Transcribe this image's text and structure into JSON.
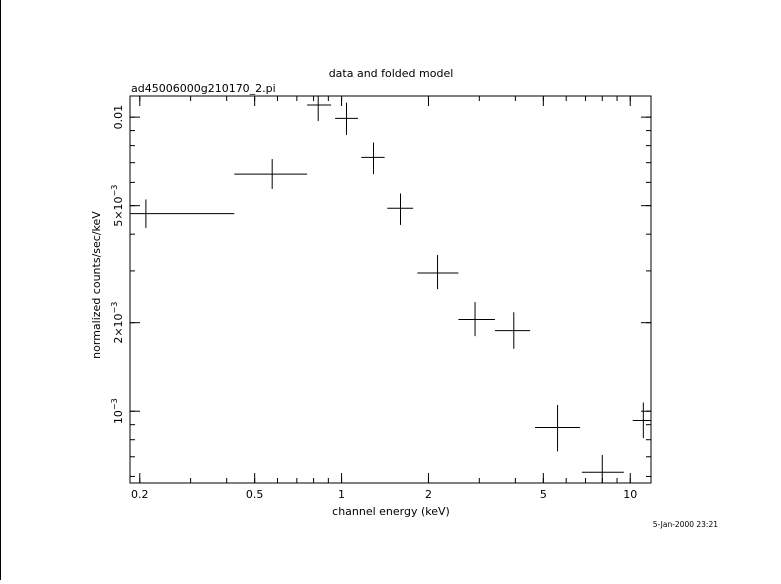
{
  "chart_data": {
    "type": "scatter",
    "title": "data and folded model",
    "subtitle": "ad45006000g210170_2.pi",
    "xlabel": "channel energy (keV)",
    "ylabel": "normalized counts/sec/keV",
    "x_scale": "log",
    "y_scale": "log",
    "xlim": [
      0.185,
      11.8
    ],
    "ylim": [
      0.00057,
      0.0118
    ],
    "x_ticks": [
      {
        "value": 0.2,
        "label": "0.2"
      },
      {
        "value": 0.5,
        "label": "0.5"
      },
      {
        "value": 1,
        "label": "1"
      },
      {
        "value": 2,
        "label": "2"
      },
      {
        "value": 5,
        "label": "5"
      },
      {
        "value": 10,
        "label": "10"
      }
    ],
    "y_ticks": [
      {
        "value": 0.001,
        "mantissa": "10",
        "exponent": "−3"
      },
      {
        "value": 0.002,
        "mantissa": "2×10",
        "exponent": "−3"
      },
      {
        "value": 0.005,
        "mantissa": "5×10",
        "exponent": "−3"
      },
      {
        "value": 0.01,
        "mantissa": "0.01",
        "exponent": ""
      }
    ],
    "grid": false,
    "points": [
      {
        "x": 0.21,
        "x_lo": 0.185,
        "x_hi": 0.425,
        "y": 0.0047,
        "y_lo": 0.0042,
        "y_hi": 0.00525
      },
      {
        "x": 0.575,
        "x_lo": 0.425,
        "x_hi": 0.76,
        "y": 0.0064,
        "y_lo": 0.0057,
        "y_hi": 0.0072
      },
      {
        "x": 0.83,
        "x_lo": 0.76,
        "x_hi": 0.92,
        "y": 0.011,
        "y_lo": 0.0097,
        "y_hi": 0.0118
      },
      {
        "x": 1.04,
        "x_lo": 0.95,
        "x_hi": 1.14,
        "y": 0.0099,
        "y_lo": 0.0087,
        "y_hi": 0.0112
      },
      {
        "x": 1.29,
        "x_lo": 1.17,
        "x_hi": 1.41,
        "y": 0.0073,
        "y_lo": 0.0064,
        "y_hi": 0.0082
      },
      {
        "x": 1.6,
        "x_lo": 1.44,
        "x_hi": 1.77,
        "y": 0.0049,
        "y_lo": 0.0043,
        "y_hi": 0.0055
      },
      {
        "x": 2.15,
        "x_lo": 1.83,
        "x_hi": 2.54,
        "y": 0.00295,
        "y_lo": 0.0026,
        "y_hi": 0.0034
      },
      {
        "x": 2.9,
        "x_lo": 2.54,
        "x_hi": 3.4,
        "y": 0.00205,
        "y_lo": 0.0018,
        "y_hi": 0.00235
      },
      {
        "x": 3.95,
        "x_lo": 3.4,
        "x_hi": 4.5,
        "y": 0.00188,
        "y_lo": 0.00163,
        "y_hi": 0.00217
      },
      {
        "x": 5.6,
        "x_lo": 4.68,
        "x_hi": 6.7,
        "y": 0.00088,
        "y_lo": 0.00073,
        "y_hi": 0.00105
      },
      {
        "x": 8.0,
        "x_lo": 6.8,
        "x_hi": 9.5,
        "y": 0.00062,
        "y_lo": 0.00053,
        "y_hi": 0.00071
      },
      {
        "x": 11.1,
        "x_lo": 10.2,
        "x_hi": 11.8,
        "y": 0.00093,
        "y_lo": 0.00081,
        "y_hi": 0.00107
      }
    ],
    "timestamp": "5-Jan-2000 23:21"
  }
}
